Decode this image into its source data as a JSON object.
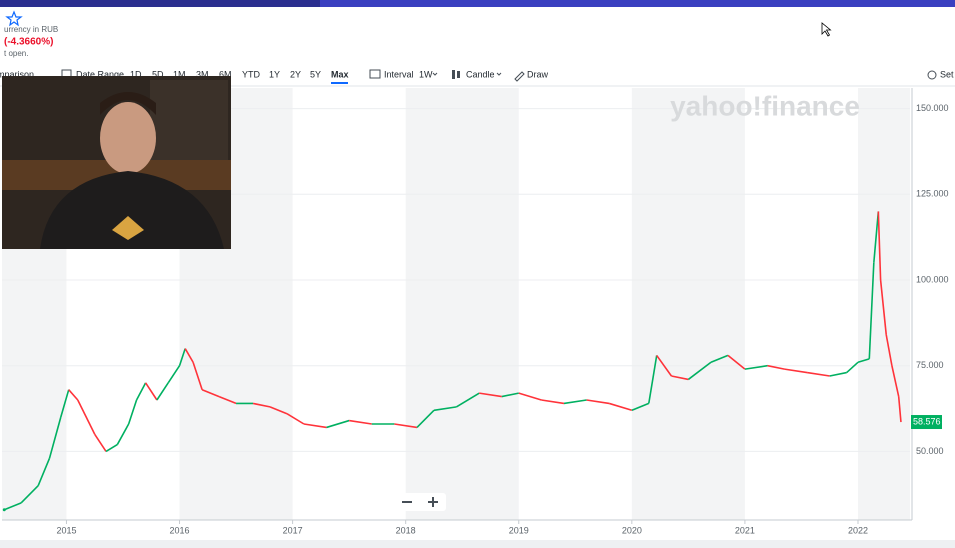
{
  "header": {
    "currency_note": "urrency in RUB",
    "change_percent": "(-4.3660%)",
    "market_status": "t open."
  },
  "toolbar": {
    "comparison": "mparison",
    "date_range": "Date Range",
    "ranges": [
      "1D",
      "5D",
      "1M",
      "3M",
      "6M",
      "YTD",
      "1Y",
      "2Y",
      "5Y",
      "Max"
    ],
    "active_range": "Max",
    "interval_label": "Interval",
    "interval_value": "1W",
    "chart_type": "Candle",
    "draw": "Draw",
    "settings": "Set"
  },
  "chart_data": {
    "type": "line",
    "watermark": "yahoo!finance",
    "x": [
      2014.45,
      2014.6,
      2014.75,
      2014.85,
      2014.95,
      2015.02,
      2015.1,
      2015.25,
      2015.35,
      2015.45,
      2015.55,
      2015.62,
      2015.7,
      2015.8,
      2015.9,
      2016.0,
      2016.05,
      2016.12,
      2016.2,
      2016.35,
      2016.5,
      2016.65,
      2016.8,
      2016.95,
      2017.1,
      2017.3,
      2017.5,
      2017.7,
      2017.9,
      2018.1,
      2018.25,
      2018.45,
      2018.65,
      2018.85,
      2019.0,
      2019.2,
      2019.4,
      2019.6,
      2019.8,
      2020.0,
      2020.15,
      2020.22,
      2020.35,
      2020.5,
      2020.7,
      2020.85,
      2021.0,
      2021.2,
      2021.35,
      2021.55,
      2021.75,
      2021.9,
      2022.0,
      2022.1,
      2022.14,
      2022.18,
      2022.2,
      2022.25,
      2022.3,
      2022.36,
      2022.38
    ],
    "values": [
      33,
      35,
      40,
      48,
      60,
      68,
      65,
      55,
      50,
      52,
      58,
      65,
      70,
      65,
      70,
      75,
      80,
      76,
      68,
      66,
      64,
      64,
      63,
      61,
      58,
      57,
      59,
      58,
      58,
      57,
      62,
      63,
      67,
      66,
      67,
      65,
      64,
      65,
      64,
      62,
      64,
      78,
      72,
      71,
      76,
      78,
      74,
      75,
      74,
      73,
      72,
      73,
      76,
      77,
      105,
      120,
      100,
      84,
      75,
      66,
      58.576
    ],
    "up_color": "#00b061",
    "down_color": "#ff333a",
    "last_price": "58.576",
    "last_price_color": "#00b061",
    "xlim": [
      2014.43,
      2022.46
    ],
    "ylim": [
      30,
      156
    ],
    "xticks": [
      2015,
      2016,
      2017,
      2018,
      2019,
      2020,
      2021,
      2022
    ],
    "yticks": [
      {
        "value": 50,
        "label": "50.000"
      },
      {
        "value": 75,
        "label": "75.000"
      },
      {
        "value": 100,
        "label": "100.000"
      },
      {
        "value": 125,
        "label": "125.000"
      },
      {
        "value": 150,
        "label": "150.000"
      }
    ],
    "grid": true,
    "year_shading": true
  }
}
